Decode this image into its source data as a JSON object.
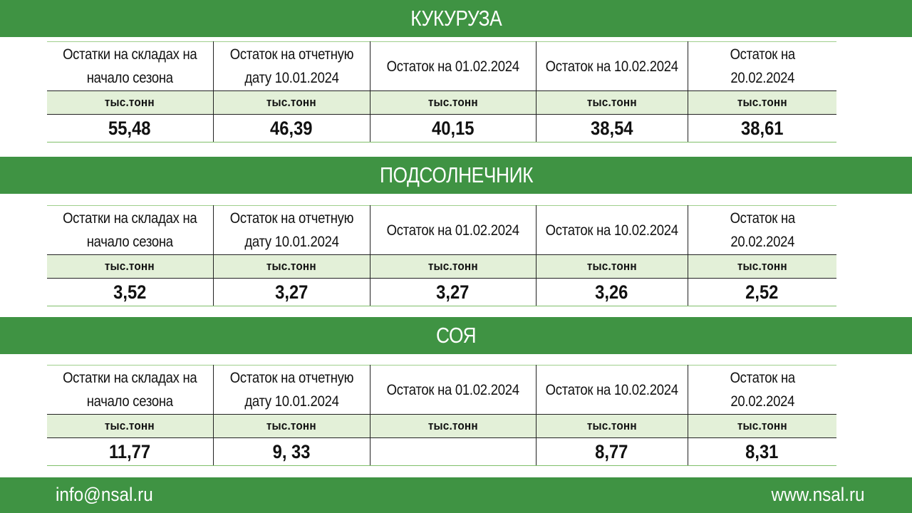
{
  "header_row": {
    "h1": "Остатки на складах на начало сезона",
    "h2": "Остаток на отчетную дату 10.01.2024",
    "h3": "Остаток на 01.02.2024",
    "h4": "Остаток на 10.02.2024",
    "h5": "Остаток на 20.02.2024"
  },
  "unit": "тыс.тонн",
  "sections": [
    {
      "title": "КУКУРУЗА",
      "values": [
        "55,48",
        "46,39",
        "40,15",
        "38,54",
        "38,61"
      ],
      "units": [
        "тыс.тонн",
        "тыс.тонн",
        "тыс.тонн",
        "тыс.тонн",
        "тыс.тонн"
      ]
    },
    {
      "title": "ПОДСОЛНЕЧНИК",
      "values": [
        "3,52",
        "3,27",
        "3,27",
        "3,26",
        "2,52"
      ],
      "units": [
        "тыс.тонн",
        "тыс.тонн",
        "тыс.тонн",
        "тыс.тонн",
        "тыс.тонн"
      ]
    },
    {
      "title": "СОЯ",
      "values": [
        "11,77",
        "9, 33",
        "",
        "8,77",
        "8,31"
      ],
      "units": [
        "тыс.тонн",
        "тыс.тонн",
        "тыс.тонн",
        "тыс.тонн",
        "тыс.тонн"
      ]
    }
  ],
  "footer": {
    "email": "info@nsal.ru",
    "website": "www.nsal.ru"
  },
  "colors": {
    "band": "#3f9343",
    "unit_row": "#e3f0d8",
    "text": "#111111"
  }
}
